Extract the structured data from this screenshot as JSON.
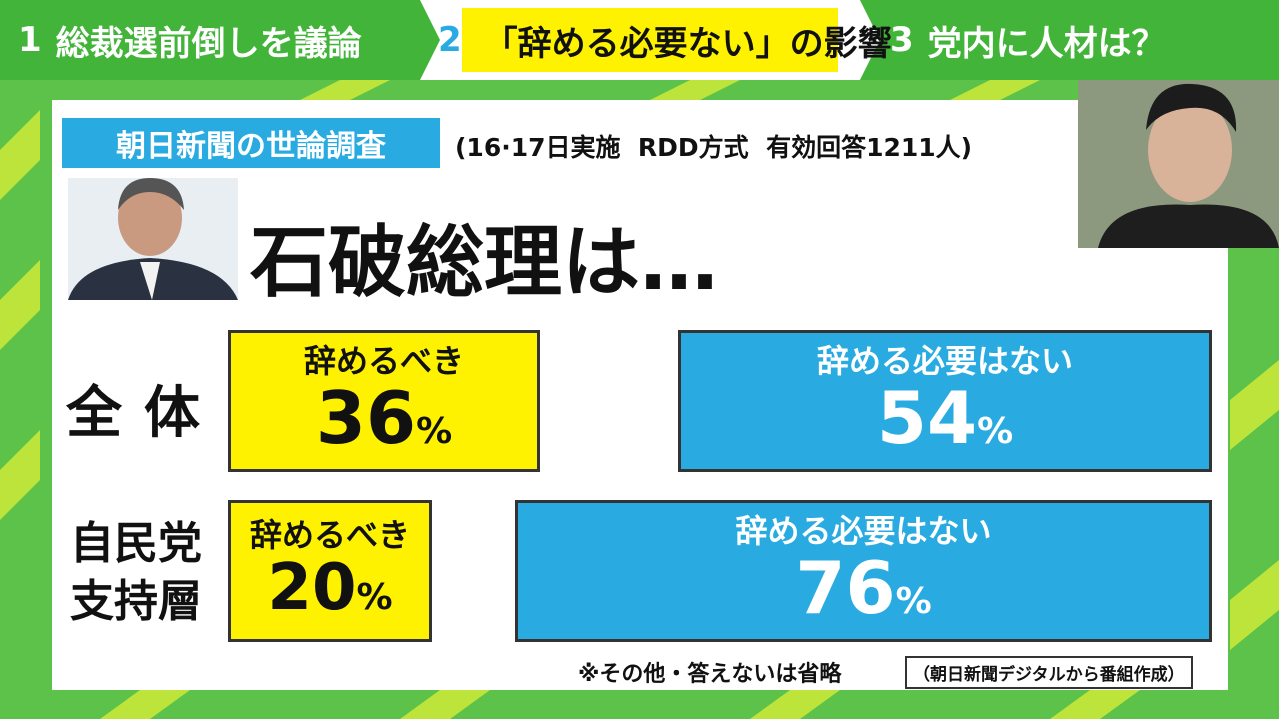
{
  "tabs": [
    {
      "num": "1",
      "label": "総裁選前倒しを議論"
    },
    {
      "num": "2",
      "label": "「辞める必要ない」の影響"
    },
    {
      "num": "3",
      "label": "党内に人材は？"
    }
  ],
  "panel": {
    "tag": "朝日新聞の世論調査",
    "survey_note": "(16·17日実施  RDD方式  有効回答1211人)",
    "headline": "石破総理は…"
  },
  "rows": [
    {
      "label": [
        "全体"
      ],
      "resign": {
        "label": "辞めるべき",
        "value": 36,
        "unit": "%"
      },
      "stay": {
        "label": "辞める必要はない",
        "value": 54,
        "unit": "%"
      }
    },
    {
      "label": [
        "自民党",
        "支持層"
      ],
      "resign": {
        "label": "辞めるべき",
        "value": 20,
        "unit": "%"
      },
      "stay": {
        "label": "辞める必要はない",
        "value": 76,
        "unit": "%"
      }
    }
  ],
  "footnote": "※その他・答えないは省略",
  "source": "（朝日新聞デジタルから番組作成）"
}
